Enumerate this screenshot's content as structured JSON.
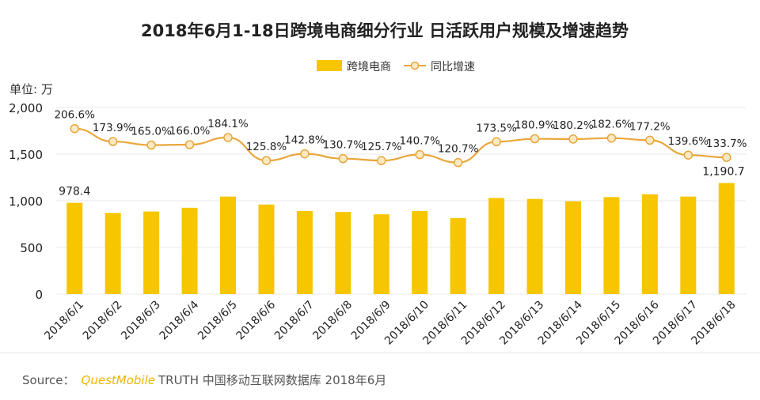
{
  "chart_data": {
    "type": "bar",
    "title": "2018年6月1-18日跨境电商细分行业 日活跃用户规模及增速趋势",
    "unit_label": "单位: 万",
    "categories": [
      "2018/6/1",
      "2018/6/2",
      "2018/6/3",
      "2018/6/4",
      "2018/6/5",
      "2018/6/6",
      "2018/6/7",
      "2018/6/8",
      "2018/6/9",
      "2018/6/10",
      "2018/6/11",
      "2018/6/12",
      "2018/6/13",
      "2018/6/14",
      "2018/6/15",
      "2018/6/16",
      "2018/6/17",
      "2018/6/18"
    ],
    "ylim": [
      0,
      2000
    ],
    "yticks": [
      0,
      500,
      1000,
      1500,
      2000
    ],
    "ytick_labels": [
      "0",
      "500",
      "1,000",
      "1,500",
      "2,000"
    ],
    "legend_position": "top-center",
    "series": [
      {
        "name": "跨境电商",
        "type": "bar",
        "color": "#f7c600",
        "values": [
          978.4,
          870,
          885,
          925,
          1045,
          960,
          890,
          880,
          855,
          890,
          815,
          1030,
          1020,
          995,
          1040,
          1070,
          1045,
          1190.7
        ],
        "data_labels": {
          "0": "978.4",
          "17": "1,190.7"
        }
      },
      {
        "name": "同比增速",
        "type": "line",
        "color": "#e9a63a",
        "marker_fill": "#fbe9c4",
        "values_percent": [
          206.6,
          173.9,
          165.0,
          166.0,
          184.1,
          125.8,
          142.8,
          130.7,
          125.7,
          140.7,
          120.7,
          173.5,
          180.9,
          180.2,
          182.6,
          177.2,
          139.6,
          133.7
        ],
        "labels": [
          "206.6%",
          "173.9%",
          "165.0%",
          "166.0%",
          "184.1%",
          "125.8%",
          "142.8%",
          "130.7%",
          "125.7%",
          "140.7%",
          "120.7%",
          "173.5%",
          "180.9%",
          "180.2%",
          "182.6%",
          "177.2%",
          "139.6%",
          "133.7%"
        ]
      }
    ]
  },
  "footer": {
    "source_label": "Source：",
    "brand": "QuestMobile",
    "text": "TRUTH 中国移动互联网数据库 2018年6月"
  }
}
